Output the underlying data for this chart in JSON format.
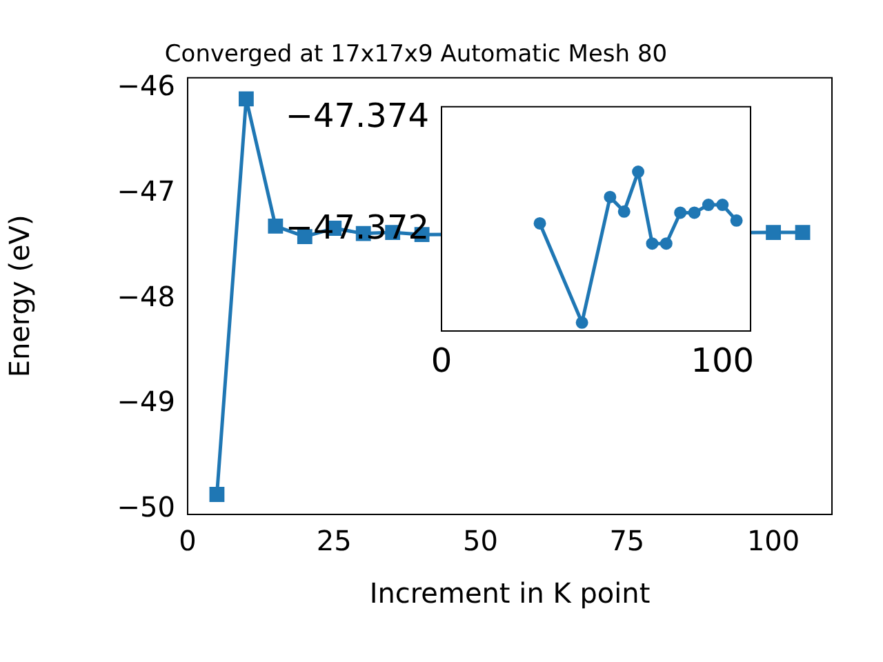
{
  "chart_data": [
    {
      "type": "line",
      "title": "Converged at 17x17x9 Automatic Mesh 80",
      "xlabel": "Increment in K point",
      "ylabel": "Energy (eV)",
      "x": [
        5,
        10,
        15,
        20,
        25,
        30,
        35,
        40,
        45,
        50,
        55,
        60,
        65,
        70,
        75,
        80,
        85,
        90,
        95,
        100,
        105
      ],
      "series": [
        {
          "color": "#1f77b4",
          "values": [
            -49.86,
            -46.1,
            -47.31,
            -47.41,
            -47.33,
            -47.38,
            -47.37,
            -47.39,
            null,
            null,
            null,
            null,
            null,
            null,
            null,
            null,
            null,
            null,
            null,
            -47.37,
            -47.37
          ]
        }
      ],
      "xlim": [
        0,
        110
      ],
      "ylim": [
        -50.05,
        -45.9
      ],
      "xticks": [
        0,
        25,
        50,
        75,
        100
      ],
      "yticks": [
        -50,
        -49,
        -48,
        -47,
        -46
      ],
      "marker": "square",
      "line_style": "solid",
      "grid": false,
      "legend": false
    },
    {
      "type": "line",
      "x": [
        35,
        50,
        60,
        65,
        70,
        75,
        80,
        85,
        90,
        95,
        100,
        105
      ],
      "series": [
        {
          "color": "#1f77b4",
          "values": [
            -47.37212,
            -47.37035,
            -47.37259,
            -47.37233,
            -47.37304,
            -47.37176,
            -47.37176,
            -47.37231,
            -47.37231,
            -47.37245,
            -47.37245,
            -47.37217
          ]
        }
      ],
      "xlim": [
        0,
        110
      ],
      "ylim": [
        -47.3702,
        -47.3742
      ],
      "xticks": [
        0,
        100
      ],
      "yticks": [
        -47.374,
        -47.372
      ],
      "marker": "circle",
      "line_style": "solid",
      "grid": false,
      "legend": false
    }
  ]
}
